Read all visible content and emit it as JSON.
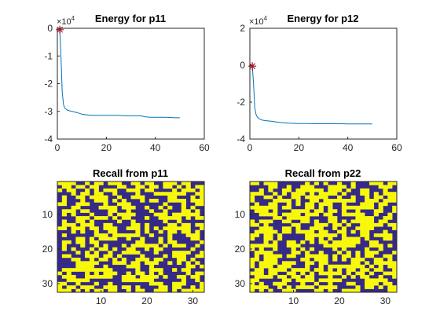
{
  "colors": {
    "energy_line": "#0072BD",
    "marker": "#A2142F",
    "state_on": "#F8F80A",
    "state_off": "#352A87",
    "axes": "#262626"
  },
  "chart_data": [
    {
      "type": "line",
      "title": "Energy for p11",
      "exponent_label": "×10",
      "exponent_power": "4",
      "xlim": [
        0,
        60
      ],
      "ylim": [
        -4,
        0
      ],
      "xticks": [
        "0",
        "20",
        "40",
        "60"
      ],
      "yticks": [
        "-4",
        "-3",
        "-2",
        "-1",
        "0"
      ],
      "x": [
        1,
        1.5,
        2,
        2.5,
        3,
        4,
        5,
        6,
        8,
        10,
        12,
        14,
        16,
        18,
        20,
        22,
        24,
        26,
        28,
        30,
        32,
        34,
        36,
        38,
        40,
        42,
        44,
        46,
        48,
        50
      ],
      "y": [
        -0.05,
        -1.1,
        -2.3,
        -2.75,
        -2.88,
        -2.95,
        -2.98,
        -3.0,
        -3.04,
        -3.1,
        -3.13,
        -3.14,
        -3.14,
        -3.14,
        -3.14,
        -3.14,
        -3.14,
        -3.15,
        -3.16,
        -3.16,
        -3.16,
        -3.16,
        -3.2,
        -3.21,
        -3.21,
        -3.21,
        -3.21,
        -3.22,
        -3.23,
        -3.23
      ],
      "marker_points": [
        {
          "x": 1,
          "y": -0.05
        }
      ]
    },
    {
      "type": "line",
      "title": "Energy for p12",
      "exponent_label": "×10",
      "exponent_power": "4",
      "xlim": [
        0,
        60
      ],
      "ylim": [
        -4,
        2
      ],
      "xticks": [
        "0",
        "20",
        "40",
        "60"
      ],
      "yticks": [
        "-4",
        "-2",
        "0",
        "2"
      ],
      "x": [
        1,
        1.5,
        2,
        2.5,
        3,
        4,
        5,
        6,
        8,
        10,
        12,
        14,
        16,
        18,
        20,
        22,
        24,
        26,
        28,
        30,
        32,
        34,
        36,
        38,
        40,
        42,
        44,
        46,
        48,
        50
      ],
      "y": [
        -0.05,
        -1.0,
        -2.3,
        -2.65,
        -2.8,
        -2.92,
        -2.97,
        -3.0,
        -3.02,
        -3.06,
        -3.1,
        -3.12,
        -3.14,
        -3.15,
        -3.16,
        -3.16,
        -3.16,
        -3.17,
        -3.17,
        -3.17,
        -3.17,
        -3.17,
        -3.17,
        -3.17,
        -3.18,
        -3.18,
        -3.18,
        -3.18,
        -3.18,
        -3.18
      ],
      "marker_points": [
        {
          "x": 1,
          "y": -0.05
        }
      ]
    },
    {
      "type": "heatmap",
      "title": "Recall from p11",
      "xticks": [
        "10",
        "20",
        "30"
      ],
      "yticks": [
        "10",
        "20",
        "30"
      ],
      "xrange": [
        0.5,
        32.5
      ],
      "yrange": [
        0.5,
        32.5
      ],
      "rows": 32,
      "cols": 32,
      "seed": 11,
      "density": 0.5
    },
    {
      "type": "heatmap",
      "title": "Recall from p22",
      "xticks": [
        "10",
        "20",
        "30"
      ],
      "yticks": [
        "10",
        "20",
        "30"
      ],
      "xrange": [
        0.5,
        32.5
      ],
      "yrange": [
        0.5,
        32.5
      ],
      "rows": 32,
      "cols": 32,
      "seed": 22,
      "density": 0.55
    }
  ]
}
